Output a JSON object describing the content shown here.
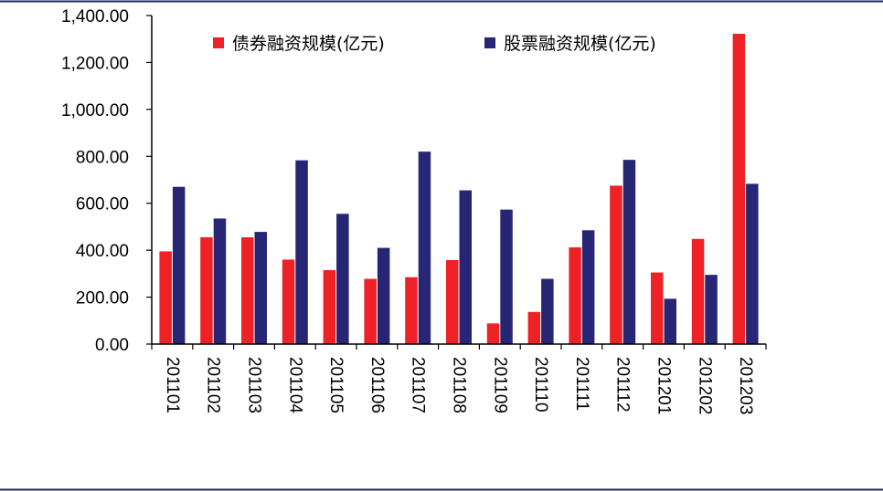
{
  "chart_data": {
    "type": "bar",
    "categories": [
      "201101",
      "201102",
      "201103",
      "201104",
      "201105",
      "201106",
      "201107",
      "201108",
      "201109",
      "201110",
      "201111",
      "201112",
      "201201",
      "201202",
      "201203"
    ],
    "series": [
      {
        "name": "债券融资规模(亿元)",
        "color": "#ee2126",
        "values": [
          395,
          455,
          455,
          360,
          315,
          278,
          285,
          358,
          88,
          137,
          412,
          675,
          305,
          448,
          1322
        ]
      },
      {
        "name": "股票融资规模(亿元)",
        "color": "#262674",
        "values": [
          670,
          535,
          478,
          783,
          555,
          410,
          820,
          655,
          573,
          278,
          485,
          785,
          193,
          295,
          683
        ]
      }
    ],
    "ylim": [
      0,
      1400
    ],
    "yticks": [
      0,
      200,
      400,
      600,
      800,
      1000,
      1200,
      1400
    ],
    "ytick_labels": [
      "0.00",
      "200.00",
      "400.00",
      "600.00",
      "800.00",
      "1,000.00",
      "1,200.00",
      "1,400.00"
    ],
    "legend_position": "top",
    "grid": false
  }
}
